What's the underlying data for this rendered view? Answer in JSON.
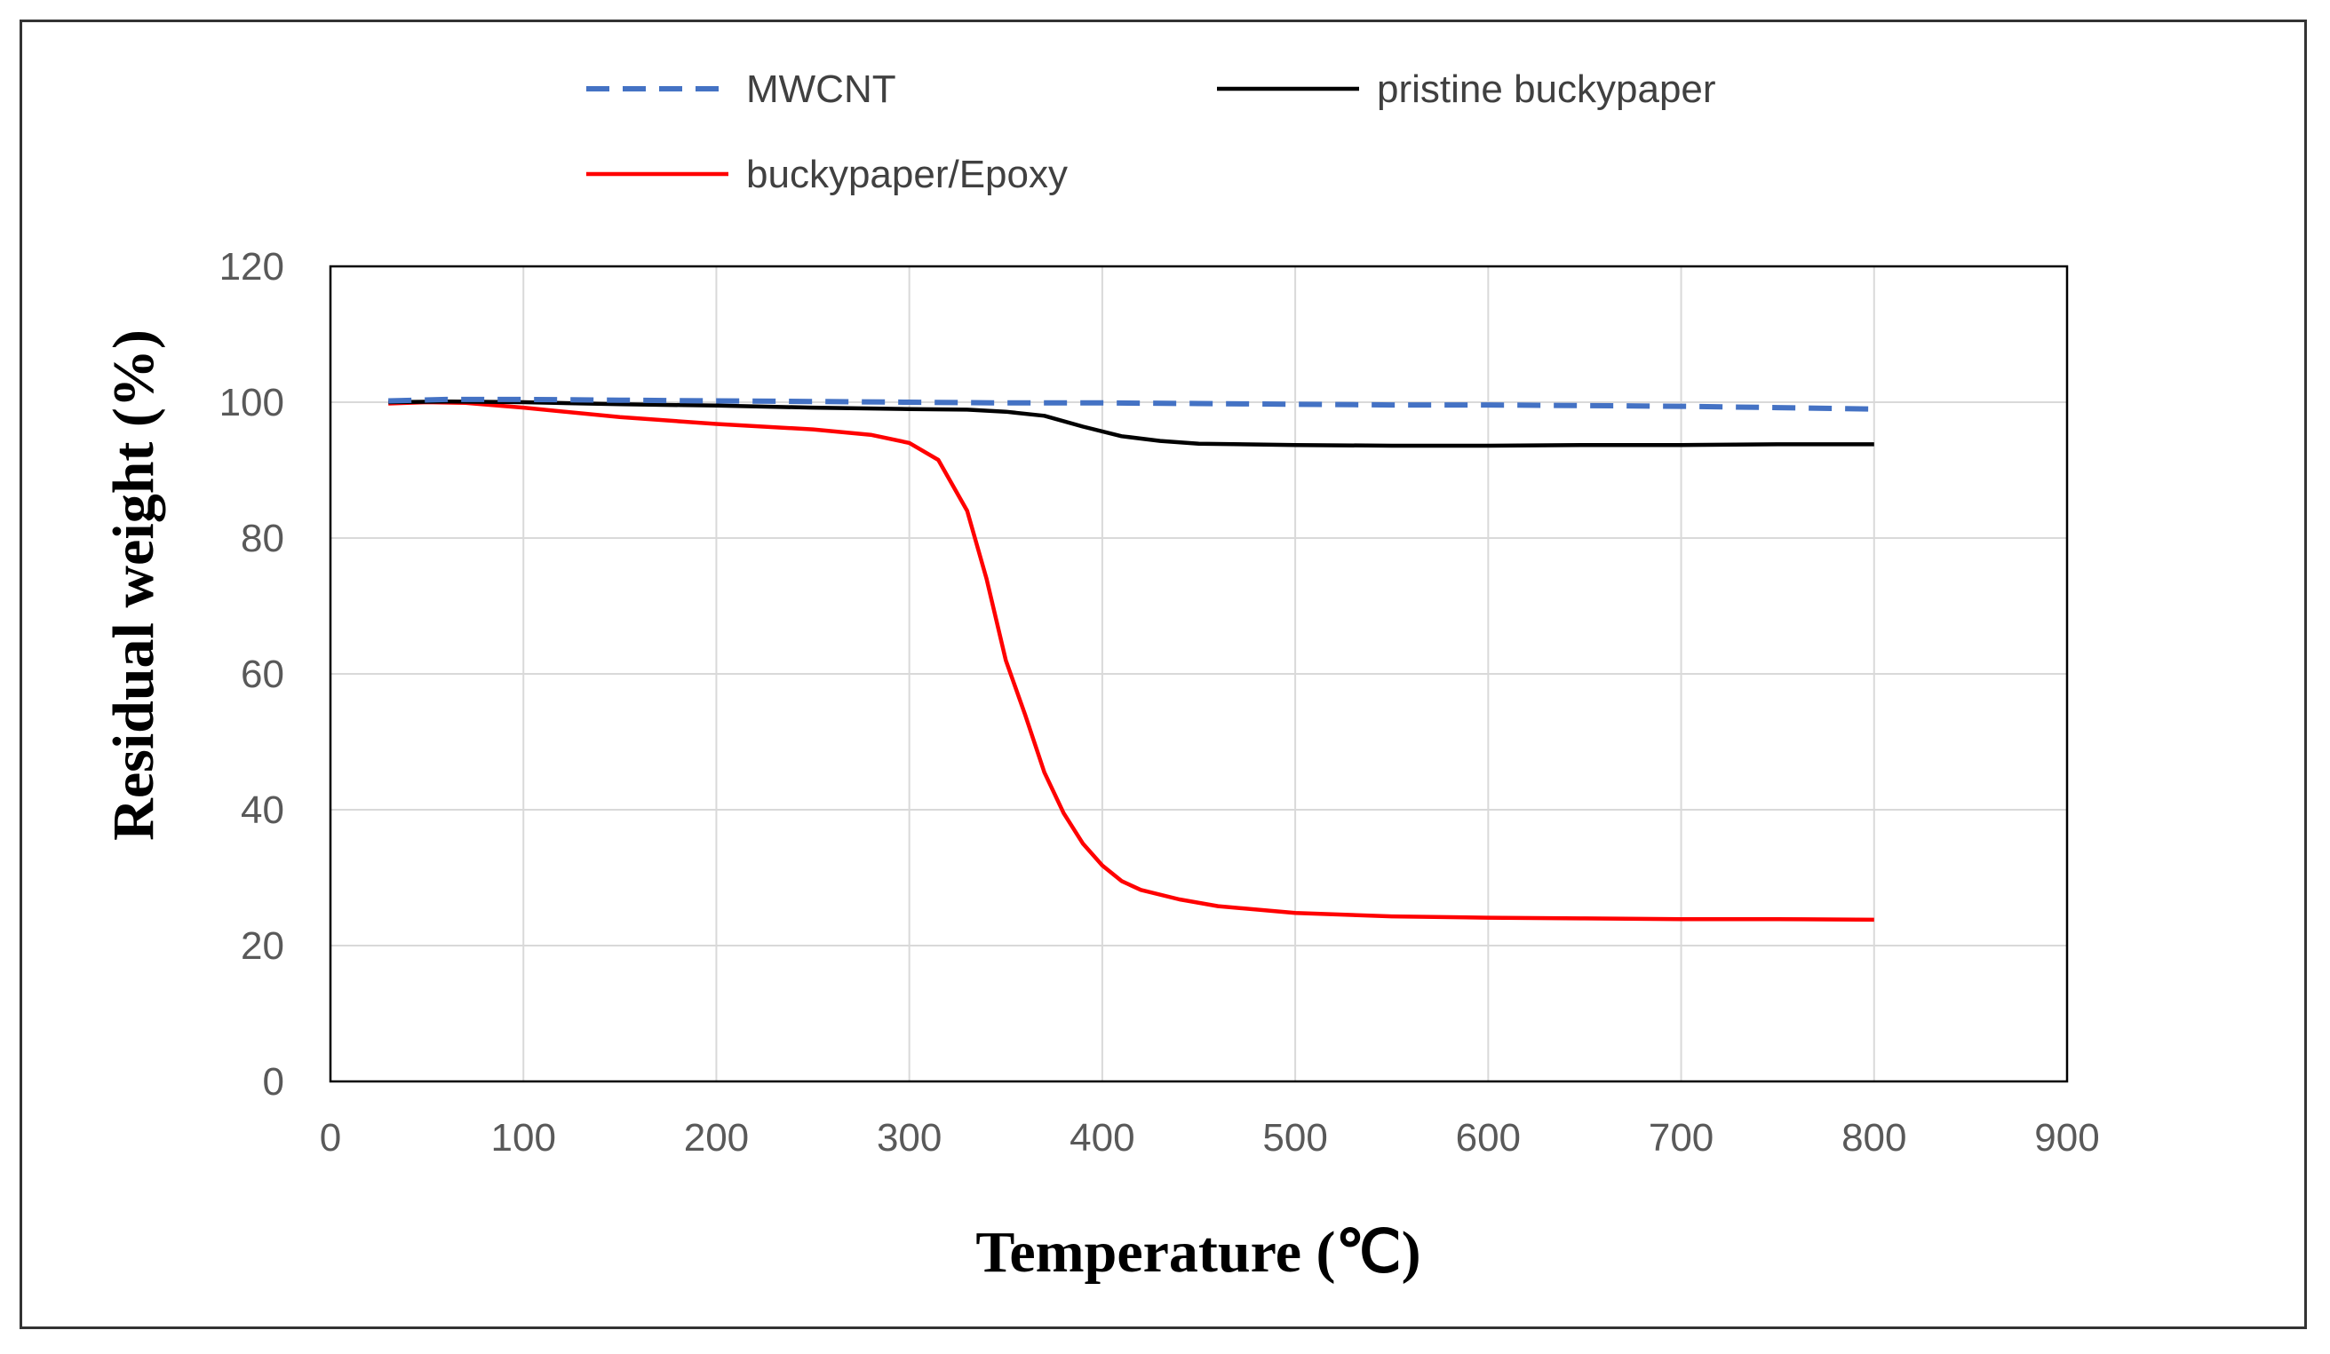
{
  "chart_data": {
    "type": "line",
    "xlabel": "Temperature (℃)",
    "ylabel": "Residual weight (%)",
    "xlim": [
      0,
      900
    ],
    "ylim": [
      0,
      120
    ],
    "xticks": [
      0,
      100,
      200,
      300,
      400,
      500,
      600,
      700,
      800,
      900
    ],
    "yticks": [
      0,
      20,
      40,
      60,
      80,
      100,
      120
    ],
    "grid": true,
    "legend_position": "top",
    "series": [
      {
        "name": "MWCNT",
        "color": "#4472c4",
        "style": "dashed",
        "x": [
          30,
          60,
          100,
          150,
          200,
          250,
          300,
          350,
          400,
          450,
          500,
          550,
          600,
          650,
          700,
          750,
          800
        ],
        "y": [
          100.2,
          100.4,
          100.4,
          100.3,
          100.2,
          100.1,
          100.0,
          99.9,
          99.9,
          99.8,
          99.7,
          99.6,
          99.6,
          99.5,
          99.4,
          99.2,
          99.0
        ]
      },
      {
        "name": "pristine buckypaper",
        "color": "#000000",
        "style": "solid",
        "x": [
          30,
          60,
          100,
          150,
          200,
          250,
          300,
          330,
          350,
          370,
          390,
          410,
          430,
          450,
          500,
          550,
          600,
          650,
          700,
          750,
          800
        ],
        "y": [
          100.0,
          100.1,
          100.0,
          99.7,
          99.5,
          99.2,
          99.0,
          98.9,
          98.6,
          98.0,
          96.4,
          95.0,
          94.3,
          93.9,
          93.7,
          93.6,
          93.6,
          93.7,
          93.7,
          93.8,
          93.8
        ]
      },
      {
        "name": "buckypaper/Epoxy",
        "color": "#ff0000",
        "style": "solid",
        "x": [
          30,
          50,
          70,
          100,
          150,
          200,
          250,
          280,
          300,
          315,
          330,
          340,
          350,
          360,
          370,
          380,
          390,
          400,
          410,
          420,
          440,
          460,
          500,
          550,
          600,
          650,
          700,
          750,
          800
        ],
        "y": [
          99.8,
          100.0,
          99.9,
          99.2,
          97.8,
          96.8,
          96.0,
          95.2,
          94.0,
          91.5,
          84.0,
          74.0,
          62.0,
          54.0,
          45.5,
          39.5,
          35.0,
          31.8,
          29.5,
          28.2,
          26.8,
          25.8,
          24.8,
          24.3,
          24.1,
          24.0,
          23.9,
          23.9,
          23.8
        ]
      }
    ]
  }
}
